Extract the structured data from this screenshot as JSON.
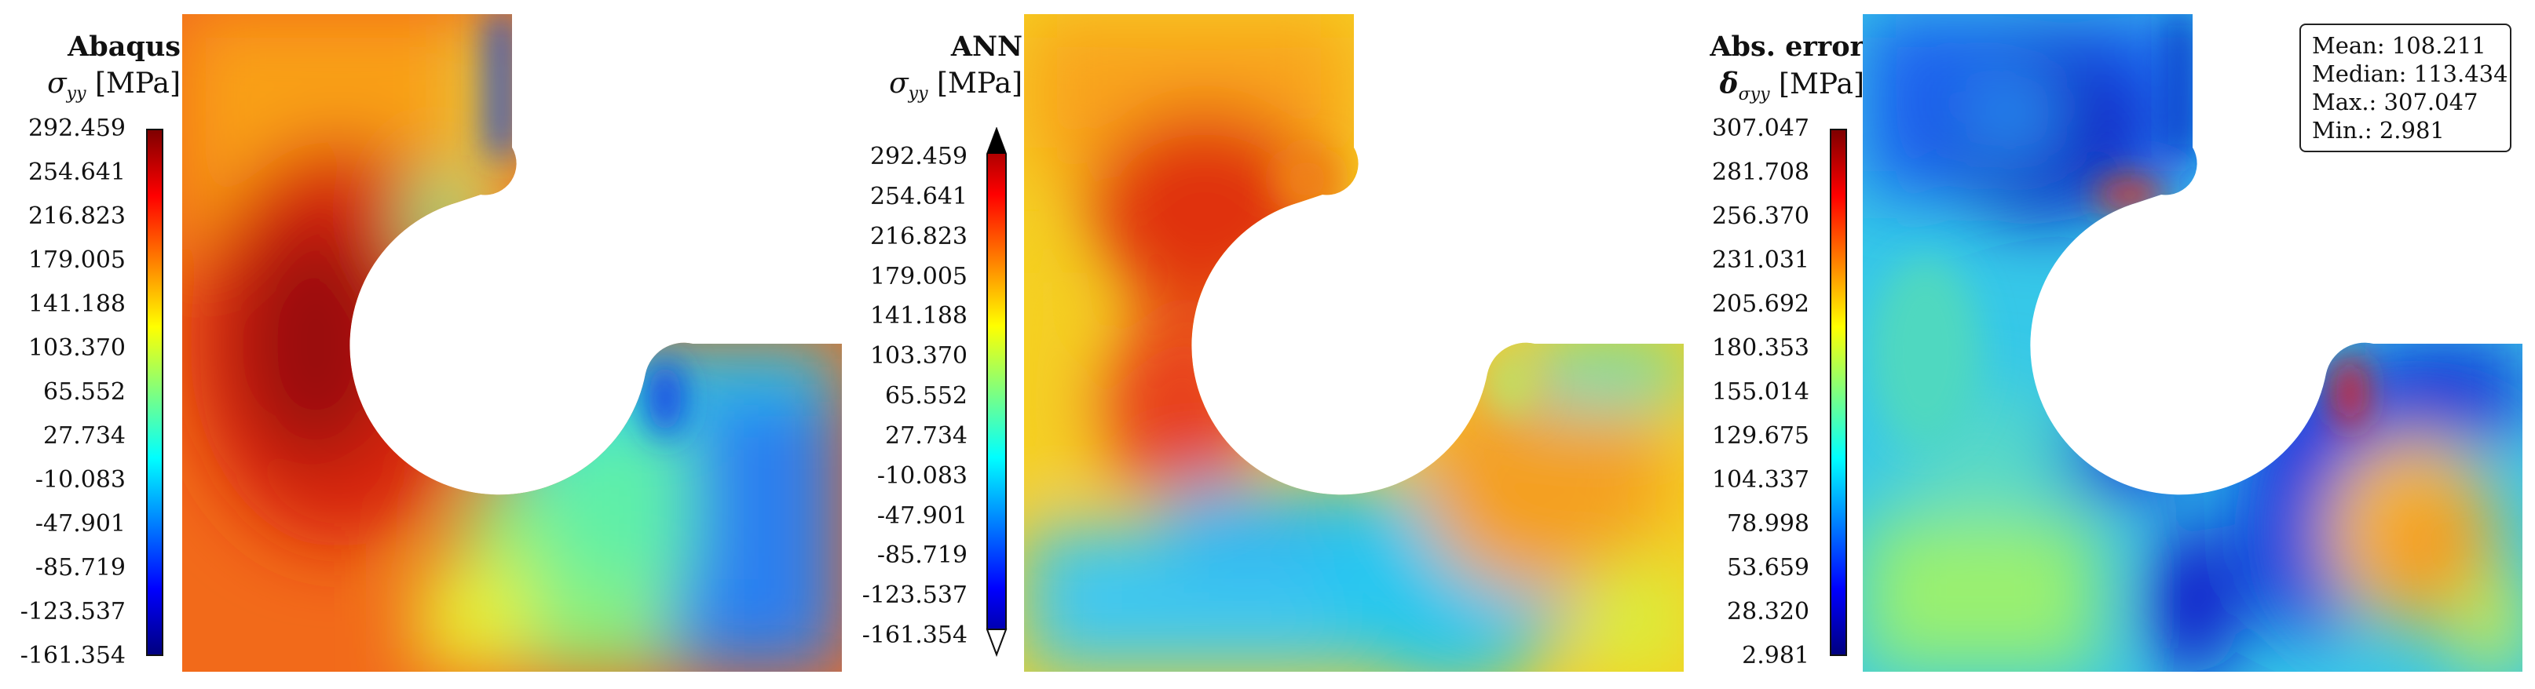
{
  "panels": [
    {
      "title": "Abaqus",
      "symbol": "σ",
      "subscript": "yy",
      "unit": "[MPa]",
      "ticks": [
        "292.459",
        "254.641",
        "216.823",
        "179.005",
        "141.188",
        "103.370",
        "65.552",
        "27.734",
        "-10.083",
        "-47.901",
        "-85.719",
        "-123.537",
        "-161.354"
      ]
    },
    {
      "title": "ANN",
      "symbol": "σ",
      "subscript": "yy",
      "unit": "[MPa]",
      "ticks": [
        "292.459",
        "254.641",
        "216.823",
        "179.005",
        "141.188",
        "103.370",
        "65.552",
        "27.734",
        "-10.083",
        "-47.901",
        "-85.719",
        "-123.537",
        "-161.354"
      ]
    },
    {
      "title": "Abs. error",
      "symbol": "δ",
      "subscript": "σyy",
      "unit": "[MPa]",
      "ticks": [
        "307.047",
        "281.708",
        "256.370",
        "231.031",
        "205.692",
        "180.353",
        "155.014",
        "129.675",
        "104.337",
        "78.998",
        "53.659",
        "28.320",
        "2.981"
      ]
    }
  ],
  "stats": {
    "mean": "Mean: 108.211",
    "median": "Median: 113.434",
    "max": "Max.: 307.047",
    "min": "Min.: 2.981"
  },
  "colormap": "jet"
}
